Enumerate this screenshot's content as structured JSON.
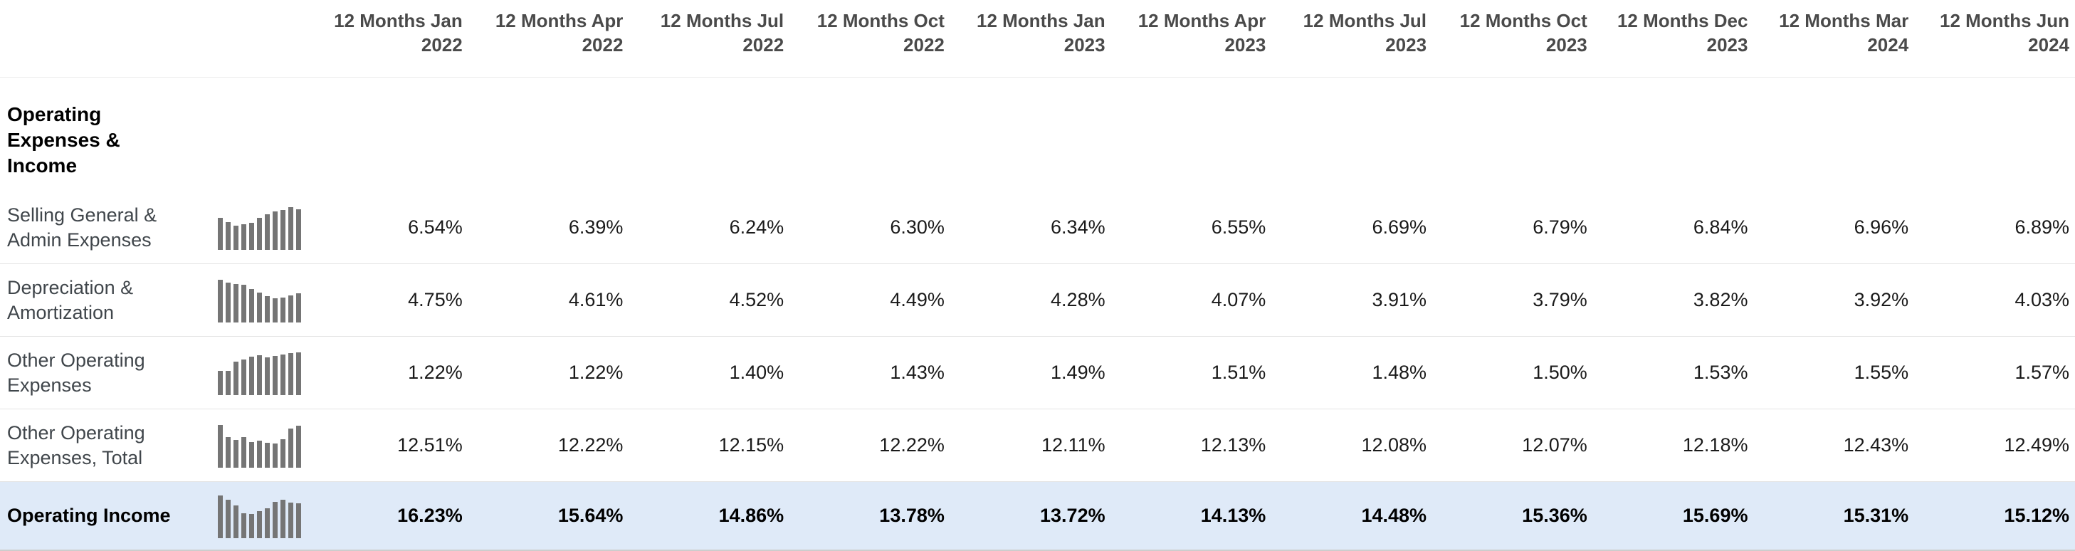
{
  "table": {
    "section_title": "Operating Expenses & Income",
    "colors": {
      "highlight_row_bg": "#dfeaf8",
      "sparkline_bar": "#757575",
      "header_text": "#4a4a4a",
      "label_text": "#40464b"
    },
    "columns": [
      {
        "period": "12 Months Jan",
        "year": "2022"
      },
      {
        "period": "12 Months Apr",
        "year": "2022"
      },
      {
        "period": "12 Months Jul",
        "year": "2022"
      },
      {
        "period": "12 Months Oct",
        "year": "2022"
      },
      {
        "period": "12 Months Jan",
        "year": "2023"
      },
      {
        "period": "12 Months Apr",
        "year": "2023"
      },
      {
        "period": "12 Months Jul",
        "year": "2023"
      },
      {
        "period": "12 Months Oct",
        "year": "2023"
      },
      {
        "period": "12 Months Dec",
        "year": "2023"
      },
      {
        "period": "12 Months Mar",
        "year": "2024"
      },
      {
        "period": "12 Months Jun",
        "year": "2024"
      }
    ],
    "rows": [
      {
        "label": "Selling General & Admin Expenses",
        "highlight": false,
        "values": [
          "6.54%",
          "6.39%",
          "6.24%",
          "6.30%",
          "6.34%",
          "6.55%",
          "6.69%",
          "6.79%",
          "6.84%",
          "6.96%",
          "6.89%"
        ]
      },
      {
        "label": "Depreciation & Amortization",
        "highlight": false,
        "values": [
          "4.75%",
          "4.61%",
          "4.52%",
          "4.49%",
          "4.28%",
          "4.07%",
          "3.91%",
          "3.79%",
          "3.82%",
          "3.92%",
          "4.03%"
        ]
      },
      {
        "label": "Other Operating Expenses",
        "highlight": false,
        "values": [
          "1.22%",
          "1.22%",
          "1.40%",
          "1.43%",
          "1.49%",
          "1.51%",
          "1.48%",
          "1.50%",
          "1.53%",
          "1.55%",
          "1.57%"
        ]
      },
      {
        "label": "Other Operating Expenses, Total",
        "highlight": false,
        "values": [
          "12.51%",
          "12.22%",
          "12.15%",
          "12.22%",
          "12.11%",
          "12.13%",
          "12.08%",
          "12.07%",
          "12.18%",
          "12.43%",
          "12.49%"
        ]
      },
      {
        "label": "Operating Income",
        "highlight": true,
        "values": [
          "16.23%",
          "15.64%",
          "14.86%",
          "13.78%",
          "13.72%",
          "14.13%",
          "14.48%",
          "15.36%",
          "15.69%",
          "15.31%",
          "15.12%"
        ]
      }
    ]
  }
}
